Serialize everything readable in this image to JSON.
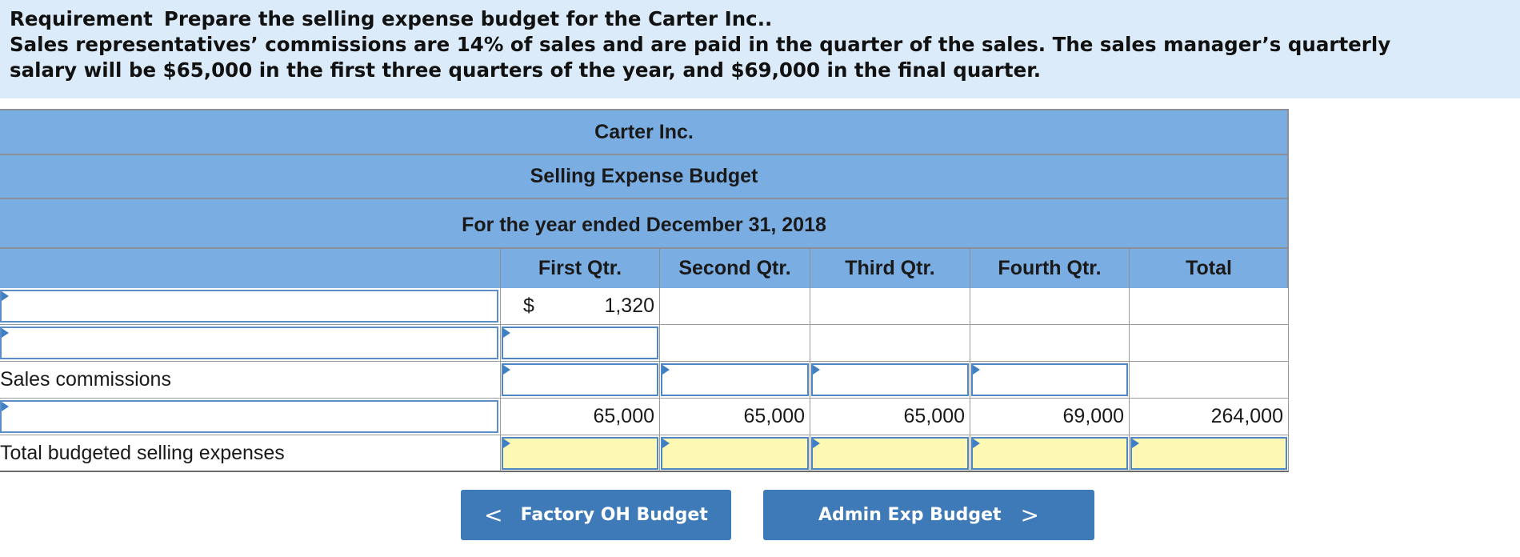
{
  "requirement": {
    "lead": "Requirement",
    "line1": "Prepare the selling expense budget for the Carter Inc..",
    "line2": "Sales representatives’ commissions are 14% of sales and are paid in the quarter of the sales. The sales manager’s quarterly",
    "line3": "salary will be $65,000 in the first three quarters of the year, and $69,000 in the final quarter."
  },
  "budget": {
    "company": "Carter Inc.",
    "title": "Selling Expense Budget",
    "period": "For the year ended December 31, 2018",
    "columns": [
      "First Qtr.",
      "Second Qtr.",
      "Third Qtr.",
      "Fourth Qtr.",
      "Total"
    ],
    "rows": [
      {
        "label": "",
        "currency": "$",
        "values": [
          "1,320",
          "",
          "",
          "",
          ""
        ]
      },
      {
        "label": "",
        "values": [
          "",
          "",
          "",
          "",
          ""
        ]
      },
      {
        "label": "Sales commissions",
        "values": [
          "",
          "",
          "",
          "",
          ""
        ]
      },
      {
        "label": "",
        "values": [
          "65,000",
          "65,000",
          "65,000",
          "69,000",
          "264,000"
        ]
      },
      {
        "label": "Total budgeted selling expenses",
        "values": [
          "",
          "",
          "",
          "",
          ""
        ]
      }
    ]
  },
  "nav": {
    "prev": {
      "label": "Factory OH Budget",
      "icon": "chevron-left-icon",
      "glyph": "<"
    },
    "next": {
      "label": "Admin Exp Budget",
      "icon": "chevron-right-icon",
      "glyph": ">"
    }
  },
  "colors": {
    "header_blue": "#7aade2",
    "requirement_bg": "#dcebf9",
    "button_blue": "#3f7ab8",
    "total_input_yellow": "#fdf9b5"
  }
}
